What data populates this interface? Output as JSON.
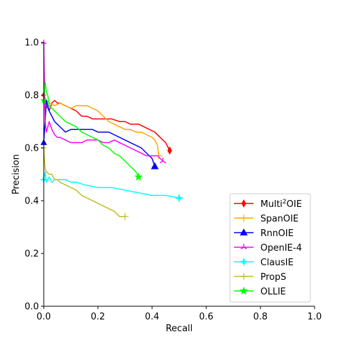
{
  "chart_data": {
    "type": "line",
    "xlabel": "Recall",
    "ylabel": "Precision",
    "xlim": [
      0.0,
      1.0
    ],
    "ylim": [
      0.0,
      1.0
    ],
    "xticks": [
      "0.0",
      "0.2",
      "0.4",
      "0.6",
      "0.8",
      "1.0"
    ],
    "yticks": [
      "0.0",
      "0.2",
      "0.4",
      "0.6",
      "0.8",
      "1.0"
    ],
    "grid": false,
    "legend_position": "lower-right",
    "series": [
      {
        "name": "Multi",
        "name_sup": "2",
        "name_suffix": "OIE",
        "color": "#ff0000",
        "marker": "thin-diamond",
        "x": [
          0.0,
          0.01,
          0.02,
          0.03,
          0.04,
          0.05,
          0.06,
          0.08,
          0.1,
          0.12,
          0.14,
          0.16,
          0.18,
          0.2,
          0.22,
          0.25,
          0.28,
          0.3,
          0.32,
          0.35,
          0.37,
          0.39,
          0.41,
          0.43,
          0.45,
          0.465
        ],
        "y": [
          0.8,
          0.76,
          0.74,
          0.77,
          0.78,
          0.77,
          0.77,
          0.76,
          0.75,
          0.74,
          0.72,
          0.72,
          0.71,
          0.71,
          0.71,
          0.71,
          0.7,
          0.7,
          0.69,
          0.69,
          0.68,
          0.67,
          0.66,
          0.64,
          0.62,
          0.59
        ]
      },
      {
        "name": "SpanOIE",
        "color": "#ffa500",
        "marker": "plus",
        "x": [
          0.0,
          0.01,
          0.02,
          0.04,
          0.06,
          0.08,
          0.1,
          0.12,
          0.14,
          0.16,
          0.18,
          0.2,
          0.22,
          0.24,
          0.26,
          0.28,
          0.3,
          0.32,
          0.34,
          0.36,
          0.38,
          0.4,
          0.41,
          0.42,
          0.425
        ],
        "y": [
          0.8,
          0.78,
          0.77,
          0.76,
          0.77,
          0.76,
          0.75,
          0.76,
          0.76,
          0.76,
          0.75,
          0.74,
          0.72,
          0.7,
          0.69,
          0.68,
          0.67,
          0.67,
          0.66,
          0.66,
          0.65,
          0.64,
          0.63,
          0.61,
          0.57
        ]
      },
      {
        "name": "RnnOIE",
        "color": "#0000ff",
        "marker": "triangle",
        "x": [
          0.0,
          0.01,
          0.02,
          0.03,
          0.04,
          0.05,
          0.06,
          0.07,
          0.08,
          0.1,
          0.12,
          0.14,
          0.16,
          0.18,
          0.2,
          0.22,
          0.24,
          0.26,
          0.28,
          0.3,
          0.32,
          0.34,
          0.36,
          0.38,
          0.39,
          0.4,
          0.41
        ],
        "y": [
          0.62,
          0.78,
          0.74,
          0.72,
          0.7,
          0.69,
          0.68,
          0.67,
          0.66,
          0.67,
          0.67,
          0.67,
          0.67,
          0.67,
          0.66,
          0.66,
          0.66,
          0.65,
          0.64,
          0.63,
          0.62,
          0.61,
          0.6,
          0.58,
          0.57,
          0.56,
          0.53
        ]
      },
      {
        "name": "OpenIE-4",
        "color": "#ff00ff",
        "marker": "tri",
        "x": [
          0.0,
          0.005,
          0.01,
          0.015,
          0.02,
          0.03,
          0.04,
          0.05,
          0.06,
          0.08,
          0.1,
          0.12,
          0.14,
          0.16,
          0.18,
          0.2,
          0.22,
          0.24,
          0.26,
          0.28,
          0.3,
          0.32,
          0.34,
          0.36,
          0.38,
          0.4,
          0.42,
          0.44
        ],
        "y": [
          1.0,
          0.7,
          0.66,
          0.68,
          0.7,
          0.67,
          0.65,
          0.64,
          0.64,
          0.63,
          0.62,
          0.62,
          0.62,
          0.63,
          0.63,
          0.63,
          0.62,
          0.62,
          0.63,
          0.62,
          0.61,
          0.6,
          0.59,
          0.58,
          0.57,
          0.57,
          0.57,
          0.55
        ]
      },
      {
        "name": "ClausIE",
        "color": "#00ffff",
        "marker": "star4",
        "x": [
          0.0,
          0.005,
          0.01,
          0.02,
          0.03,
          0.04,
          0.06,
          0.08,
          0.1,
          0.12,
          0.15,
          0.2,
          0.25,
          0.3,
          0.35,
          0.4,
          0.45,
          0.5
        ],
        "y": [
          0.48,
          0.51,
          0.47,
          0.49,
          0.47,
          0.48,
          0.48,
          0.48,
          0.47,
          0.47,
          0.46,
          0.45,
          0.45,
          0.44,
          0.43,
          0.42,
          0.42,
          0.41
        ]
      },
      {
        "name": "PropS",
        "color": "#bcbd22",
        "marker": "plus",
        "x": [
          0.0,
          0.005,
          0.01,
          0.02,
          0.03,
          0.04,
          0.05,
          0.06,
          0.08,
          0.1,
          0.12,
          0.14,
          0.16,
          0.18,
          0.2,
          0.22,
          0.24,
          0.26,
          0.28,
          0.3
        ],
        "y": [
          0.6,
          0.52,
          0.51,
          0.5,
          0.5,
          0.48,
          0.48,
          0.47,
          0.46,
          0.45,
          0.44,
          0.42,
          0.41,
          0.4,
          0.39,
          0.38,
          0.37,
          0.36,
          0.34,
          0.34
        ]
      },
      {
        "name": "OLLIE",
        "color": "#00ff00",
        "marker": "star",
        "x": [
          0.0,
          0.005,
          0.01,
          0.015,
          0.02,
          0.03,
          0.04,
          0.05,
          0.06,
          0.08,
          0.1,
          0.12,
          0.14,
          0.16,
          0.18,
          0.2,
          0.22,
          0.24,
          0.26,
          0.28,
          0.3,
          0.32,
          0.34,
          0.35
        ],
        "y": [
          0.78,
          0.85,
          0.81,
          0.8,
          0.76,
          0.75,
          0.74,
          0.73,
          0.72,
          0.7,
          0.69,
          0.68,
          0.66,
          0.65,
          0.64,
          0.63,
          0.61,
          0.6,
          0.58,
          0.57,
          0.55,
          0.53,
          0.51,
          0.49
        ]
      }
    ]
  }
}
